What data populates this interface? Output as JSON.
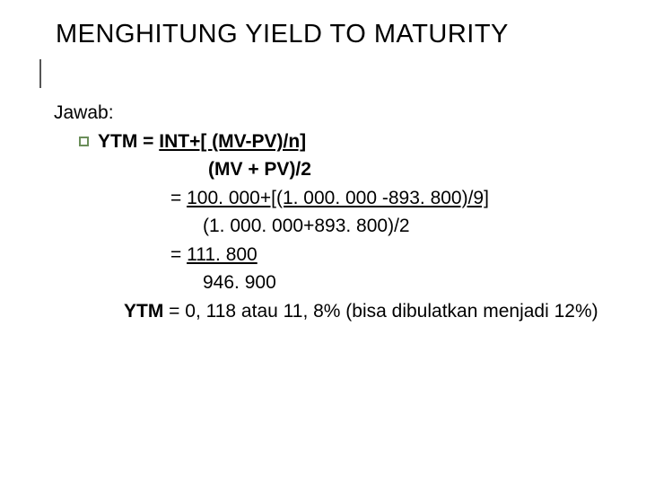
{
  "title": "MENGHITUNG YIELD TO MATURITY",
  "body": {
    "jawab": "Jawab:",
    "line1_prefix": "YTM = ",
    "line1_under": "INT+[ (MV-PV)/n]",
    "line2": "(MV + PV)/2",
    "line3_eq": "=  ",
    "line3_under": "100. 000+[(1. 000. 000 -893. 800)/9]",
    "line4": "(1. 000. 000+893. 800)/2",
    "line5_eq": "=   ",
    "line5_under": "111. 800",
    "line6": "946. 900",
    "line7_label": "YTM ",
    "line7_rest": "= 0, 118 atau 11, 8% (bisa dibulatkan menjadi 12%)"
  },
  "style": {
    "title_fontsize": 29,
    "body_fontsize": 21,
    "background": "#ffffff",
    "text_color": "#000000",
    "bullet_border": "#6b8e5a",
    "accent_line_color": "#555555"
  }
}
